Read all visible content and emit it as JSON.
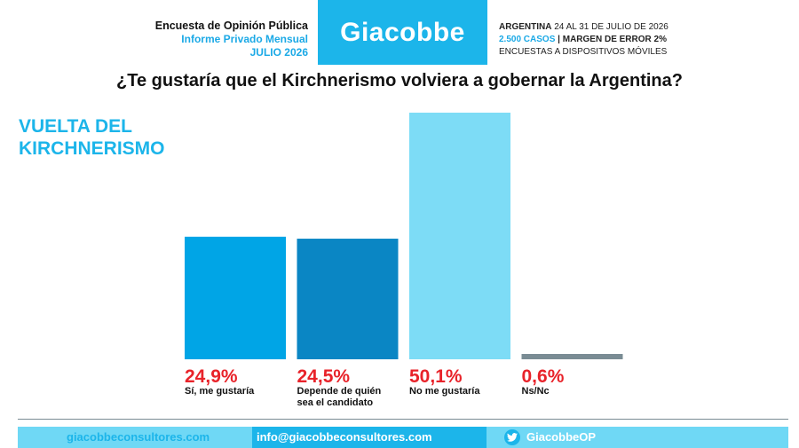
{
  "header": {
    "line1": "Encuesta de Opinión Pública",
    "line2": "Informe Privado Mensual",
    "line3": "JULIO 2026",
    "brand": "Giacobbe",
    "info_line1_bold": "ARGENTINA",
    "info_line1_rest": "24 AL 31 DE JULIO DE 2026",
    "info_line2_cases": "2.500 CASOS",
    "info_line2_sep": "|",
    "info_line2_margin": "MARGEN DE ERROR 2%",
    "info_line3": "ENCUESTAS A DISPOSITIVOS MÓVILES"
  },
  "question": "¿Te gustaría que el Kirchnerismo volviera a gobernar la Argentina?",
  "chart_title_line1": "VUELTA DEL",
  "chart_title_line2": "KIRCHNERISMO",
  "chart_data": {
    "type": "bar",
    "title": "VUELTA DEL KIRCHNERISMO",
    "categories": [
      "Sí, me gustaría",
      "Depende de quién sea el candidato",
      "No me gustaría",
      "Ns/Nc"
    ],
    "category_lines": [
      [
        "Sí, me gustaría"
      ],
      [
        "Depende de quién",
        "sea el candidato"
      ],
      [
        "No me gustaría"
      ],
      [
        "Ns/Nc"
      ]
    ],
    "values": [
      24.9,
      24.5,
      50.1,
      0.6
    ],
    "value_labels": [
      "24,9%",
      "24,5%",
      "50,1%",
      "0,6%"
    ],
    "colors": [
      "#00a5e6",
      "#0a86c4",
      "#7ddcf6",
      "#7a8c94"
    ],
    "value_label_color": "#e8232a",
    "xlabel": "",
    "ylabel": "",
    "grid": false,
    "legend": "none"
  },
  "footer": {
    "website": "giacobbeconsultores.com",
    "email": "info@giacobbeconsultores.com",
    "twitter_icon": "twitter-icon",
    "twitter_handle": "GiacobbeOP"
  }
}
